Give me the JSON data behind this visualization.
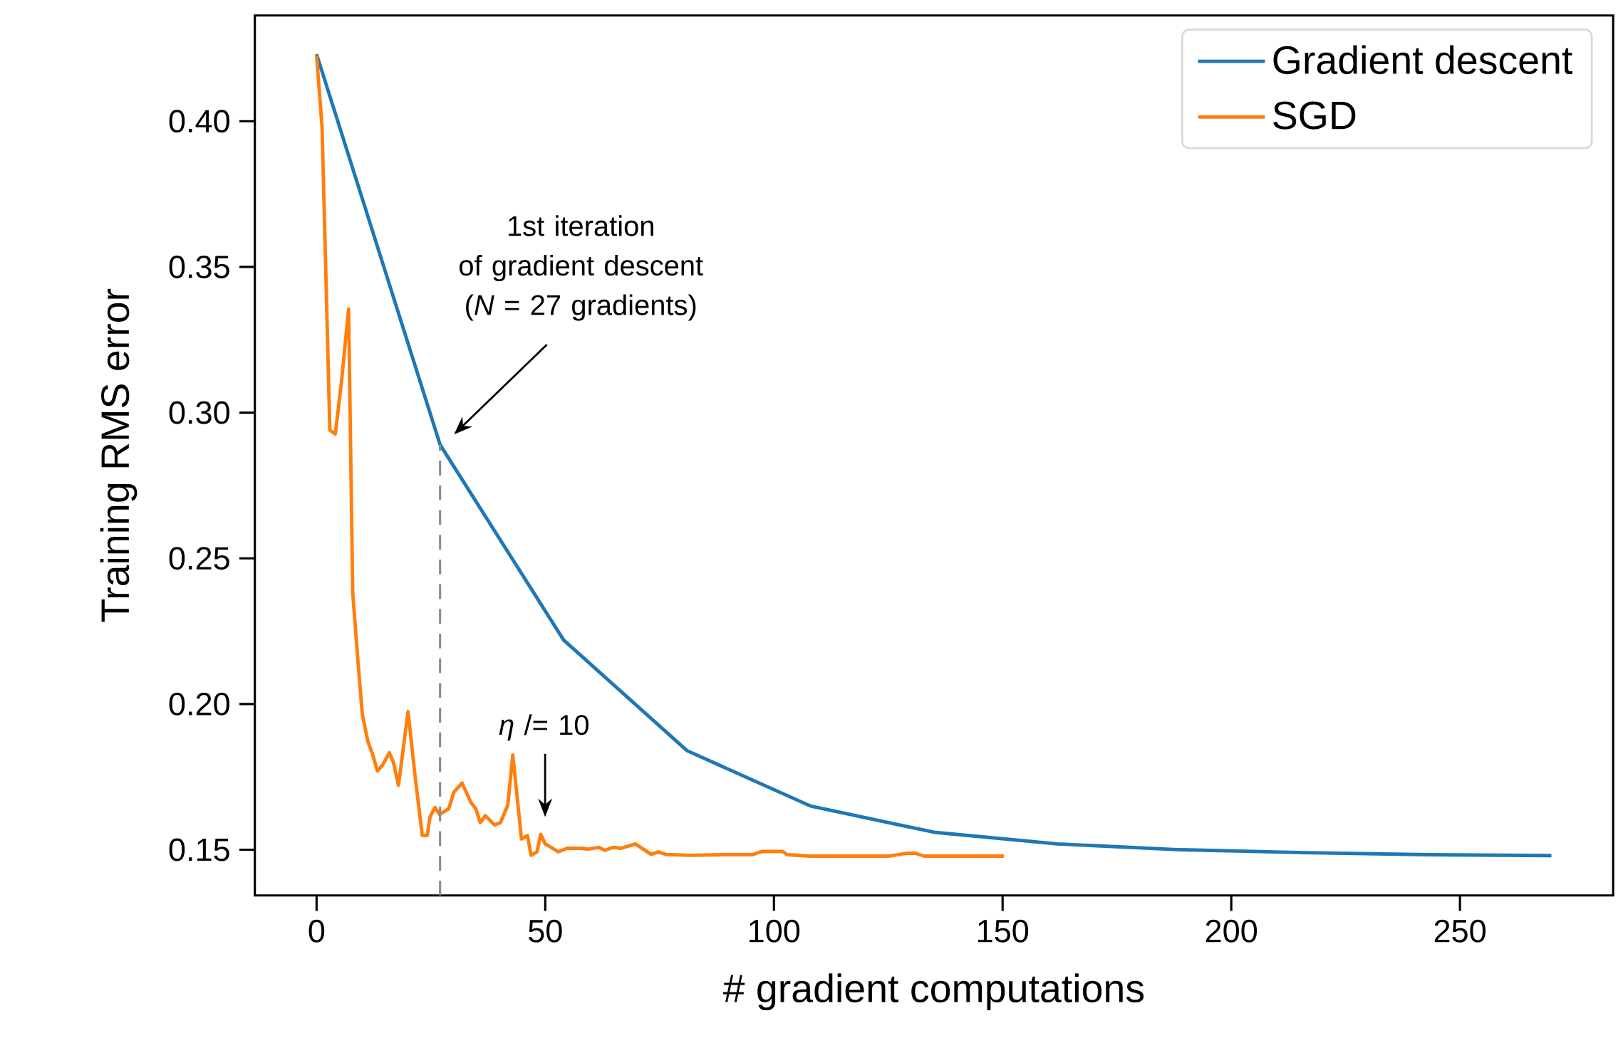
{
  "chart_data": {
    "type": "line",
    "xlabel": "# gradient computations",
    "ylabel": "Training RMS error",
    "xlim": [
      -13.5,
      283.5
    ],
    "ylim": [
      0.1343,
      0.4363
    ],
    "xticks": [
      0,
      50,
      100,
      150,
      200,
      250
    ],
    "yticks": [
      0.15,
      {
        "value": 0.2,
        "label": "0.20"
      },
      0.25,
      {
        "value": 0.3,
        "label": "0.30"
      },
      0.35,
      {
        "value": 0.4,
        "label": "0.40"
      }
    ],
    "legend": "top right",
    "series": [
      {
        "name": "Gradient descent",
        "color": "#1f77b4",
        "x": [
          0,
          27,
          54,
          81,
          108,
          135,
          162,
          189,
          216,
          243,
          270
        ],
        "values": [
          0.423,
          0.289,
          0.222,
          0.184,
          0.165,
          0.156,
          0.152,
          0.15,
          0.149,
          0.1483,
          0.148
        ]
      },
      {
        "name": "SGD",
        "color": "#ff7f0e",
        "x": [
          0,
          1.2,
          2.9,
          4.1,
          5.4,
          7.0,
          7.9,
          9.1,
          10.0,
          11.2,
          12.2,
          13.3,
          14.4,
          15.9,
          16.8,
          17.9,
          20.0,
          21.5,
          23.1,
          24.2,
          24.8,
          25.9,
          26.9,
          28.9,
          30.0,
          31.8,
          33.8,
          34.8,
          35.8,
          36.9,
          38.9,
          40.2,
          41.8,
          42.9,
          44.8,
          46.1,
          46.9,
          48.2,
          49.0,
          50.0,
          51.3,
          52.8,
          54.8,
          57.9,
          59.4,
          61.7,
          63.0,
          64.8,
          66.6,
          69.7,
          73.2,
          74.8,
          76.3,
          81.4,
          89.1,
          95.3,
          97.3,
          101.9,
          102.9,
          108.1,
          125.0,
          129.1,
          130.9,
          132.9,
          150.3
        ],
        "values": [
          0.4226,
          0.398,
          0.294,
          0.2927,
          0.31,
          0.3356,
          0.2382,
          0.2136,
          0.1966,
          0.1872,
          0.183,
          0.177,
          0.179,
          0.1833,
          0.18,
          0.1721,
          0.1974,
          0.1757,
          0.1549,
          0.1549,
          0.1613,
          0.1645,
          0.1621,
          0.1641,
          0.1697,
          0.1729,
          0.1661,
          0.1641,
          0.1593,
          0.1617,
          0.1585,
          0.1593,
          0.1653,
          0.1825,
          0.1537,
          0.1549,
          0.1481,
          0.1493,
          0.1553,
          0.152,
          0.1508,
          0.1493,
          0.1505,
          0.1505,
          0.1502,
          0.1508,
          0.1498,
          0.1508,
          0.1505,
          0.152,
          0.1484,
          0.1493,
          0.1484,
          0.1481,
          0.1483,
          0.1483,
          0.1494,
          0.1494,
          0.1483,
          0.1478,
          0.1478,
          0.1488,
          0.1488,
          0.1478,
          0.1478
        ]
      }
    ],
    "ref_lines": [
      {
        "axis": "x",
        "value": 27,
        "color": "#8c8c8c",
        "line_style": "dashed"
      }
    ],
    "annotations": [
      "1st iteration\nof gradient descent\n(*N* = 27 gradients)",
      "*η* /= 10"
    ]
  }
}
